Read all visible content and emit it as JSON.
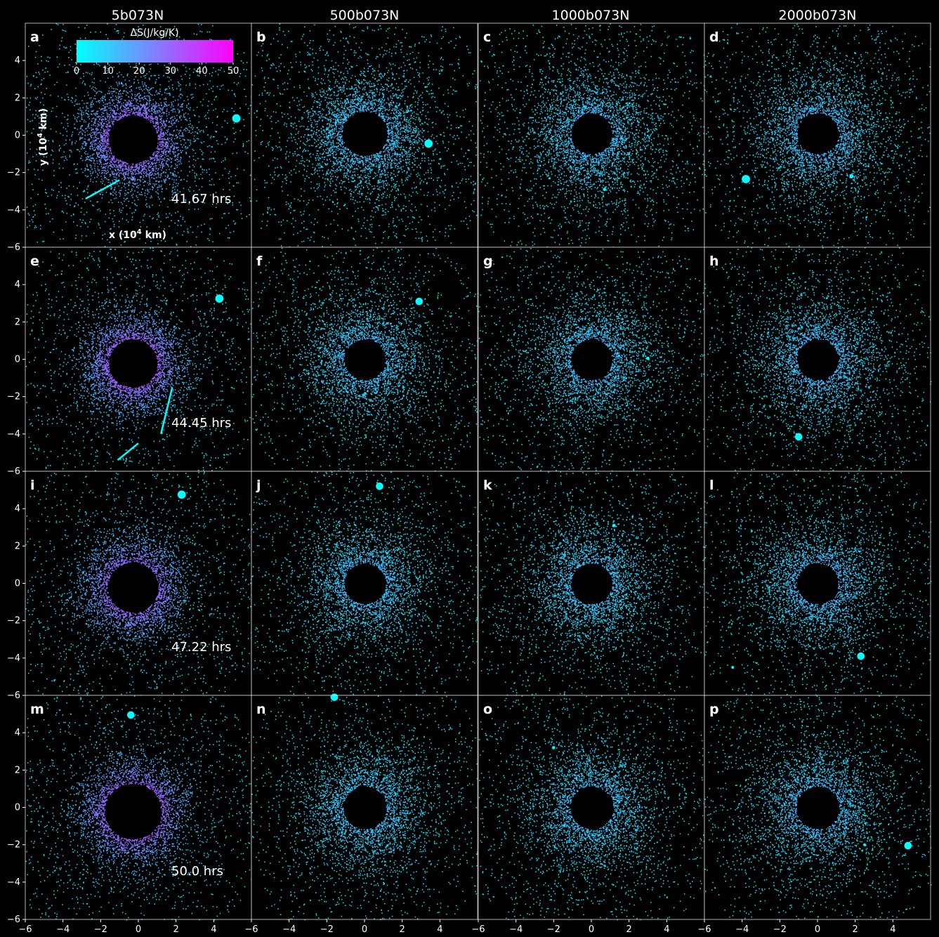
{
  "figure": {
    "column_titles": [
      "5b073N",
      "500b073N",
      "1000b073N",
      "2000b073N"
    ],
    "row_times": [
      "41.67 hrs",
      "44.45 hrs",
      "47.22 hrs",
      "50.0 hrs"
    ],
    "panel_labels": [
      "a",
      "b",
      "c",
      "d",
      "e",
      "f",
      "g",
      "h",
      "i",
      "j",
      "k",
      "l",
      "m",
      "n",
      "o",
      "p"
    ],
    "x_axis_label_main": "x (10",
    "x_axis_label_exp": "4",
    "x_axis_label_tail": " km)",
    "y_axis_label_main": "y (10",
    "y_axis_label_exp": "4",
    "y_axis_label_tail": " km)"
  },
  "colorbar": {
    "title": "ΔS(J/kg/K)",
    "min": 0,
    "max": 50,
    "ticks": [
      0,
      10,
      20,
      30,
      40,
      50
    ],
    "color_low": "#00ffff",
    "color_high": "#ff00ff"
  },
  "chart_data": {
    "type": "scatter",
    "description_units": "x, y in 10^4 km; color = ΔS in J/kg/K",
    "xlim": [
      -6,
      6
    ],
    "ylim": [
      -6,
      6
    ],
    "x_ticks": [
      -6,
      -4,
      -2,
      0,
      2,
      4
    ],
    "y_ticks": [
      -6,
      -4,
      -2,
      0,
      2,
      4
    ],
    "panels": [
      {
        "label": "a",
        "column": "5b073N",
        "time": "41.67 hrs",
        "hole_center": [
          -0.3,
          -0.2
        ],
        "hole_radius": 1.3,
        "ring_inner": 1.2,
        "ring_outer": 3.5,
        "entropy_mean": 30,
        "moonlets": [
          [
            5.2,
            0.9,
            0.2
          ]
        ],
        "streams": [
          [
            -2.8,
            -3.4,
            -1.0,
            -2.4
          ]
        ]
      },
      {
        "label": "b",
        "column": "500b073N",
        "time": "41.67 hrs",
        "hole_center": [
          0.0,
          0.1
        ],
        "hole_radius": 1.2,
        "ring_inner": 1.1,
        "ring_outer": 4.3,
        "entropy_mean": 10,
        "moonlets": [
          [
            3.4,
            -0.45,
            0.2
          ]
        ],
        "streams": []
      },
      {
        "label": "c",
        "column": "1000b073N",
        "time": "41.67 hrs",
        "hole_center": [
          0.0,
          0.1
        ],
        "hole_radius": 1.1,
        "ring_inner": 1.0,
        "ring_outer": 4.6,
        "entropy_mean": 10,
        "moonlets": [
          [
            0.7,
            -2.9,
            0.08
          ]
        ],
        "streams": []
      },
      {
        "label": "d",
        "column": "2000b073N",
        "time": "41.67 hrs",
        "hole_center": [
          0.0,
          0.1
        ],
        "hole_radius": 1.1,
        "ring_inner": 1.0,
        "ring_outer": 4.8,
        "entropy_mean": 11,
        "moonlets": [
          [
            -3.8,
            -2.35,
            0.2
          ],
          [
            1.8,
            -2.2,
            0.1
          ]
        ],
        "streams": []
      },
      {
        "label": "e",
        "column": "5b073N",
        "time": "44.45 hrs",
        "hole_center": [
          -0.3,
          -0.2
        ],
        "hole_radius": 1.3,
        "ring_inner": 1.2,
        "ring_outer": 3.5,
        "entropy_mean": 30,
        "moonlets": [
          [
            4.3,
            3.25,
            0.2
          ]
        ],
        "streams": [
          [
            1.8,
            -1.5,
            1.2,
            -4.0
          ],
          [
            0.0,
            -4.5,
            -1.1,
            -5.4
          ]
        ]
      },
      {
        "label": "f",
        "column": "500b073N",
        "time": "44.45 hrs",
        "hole_center": [
          0.0,
          0.0
        ],
        "hole_radius": 1.1,
        "ring_inner": 1.0,
        "ring_outer": 4.4,
        "entropy_mean": 10,
        "moonlets": [
          [
            2.9,
            3.1,
            0.18
          ]
        ],
        "streams": []
      },
      {
        "label": "g",
        "column": "1000b073N",
        "time": "44.45 hrs",
        "hole_center": [
          0.0,
          0.0
        ],
        "hole_radius": 1.1,
        "ring_inner": 1.0,
        "ring_outer": 4.7,
        "entropy_mean": 10,
        "moonlets": [
          [
            3.0,
            0.05,
            0.08
          ]
        ],
        "streams": []
      },
      {
        "label": "h",
        "column": "2000b073N",
        "time": "44.45 hrs",
        "hole_center": [
          0.0,
          0.0
        ],
        "hole_radius": 1.1,
        "ring_inner": 1.0,
        "ring_outer": 4.8,
        "entropy_mean": 11,
        "moonlets": [
          [
            -1.0,
            -4.15,
            0.18
          ]
        ],
        "streams": []
      },
      {
        "label": "i",
        "column": "5b073N",
        "time": "47.22 hrs",
        "hole_center": [
          -0.3,
          -0.2
        ],
        "hole_radius": 1.35,
        "ring_inner": 1.2,
        "ring_outer": 3.6,
        "entropy_mean": 30,
        "moonlets": [
          [
            2.3,
            4.75,
            0.2
          ]
        ],
        "streams": []
      },
      {
        "label": "j",
        "column": "500b073N",
        "time": "47.22 hrs",
        "hole_center": [
          0.0,
          0.0
        ],
        "hole_radius": 1.1,
        "ring_inner": 1.0,
        "ring_outer": 4.4,
        "entropy_mean": 10,
        "moonlets": [
          [
            0.8,
            5.2,
            0.18
          ]
        ],
        "streams": []
      },
      {
        "label": "k",
        "column": "1000b073N",
        "time": "47.22 hrs",
        "hole_center": [
          0.0,
          0.0
        ],
        "hole_radius": 1.1,
        "ring_inner": 1.0,
        "ring_outer": 4.7,
        "entropy_mean": 10,
        "moonlets": [
          [
            1.2,
            3.1,
            0.08
          ]
        ],
        "streams": []
      },
      {
        "label": "l",
        "column": "2000b073N",
        "time": "47.22 hrs",
        "hole_center": [
          0.0,
          0.0
        ],
        "hole_radius": 1.1,
        "ring_inner": 1.0,
        "ring_outer": 4.8,
        "entropy_mean": 11,
        "moonlets": [
          [
            2.3,
            -3.9,
            0.18
          ],
          [
            -4.5,
            -4.5,
            0.07
          ]
        ],
        "streams": []
      },
      {
        "label": "m",
        "column": "5b073N",
        "time": "50.0 hrs",
        "hole_center": [
          -0.3,
          -0.2
        ],
        "hole_radius": 1.5,
        "ring_inner": 1.3,
        "ring_outer": 3.7,
        "entropy_mean": 32,
        "moonlets": [
          [
            -0.4,
            4.95,
            0.18
          ]
        ],
        "streams": []
      },
      {
        "label": "n",
        "column": "500b073N",
        "time": "50.0 hrs",
        "hole_center": [
          0.0,
          0.0
        ],
        "hole_radius": 1.15,
        "ring_inner": 1.0,
        "ring_outer": 4.5,
        "entropy_mean": 10,
        "moonlets": [
          [
            -1.6,
            5.9,
            0.18
          ]
        ],
        "streams": []
      },
      {
        "label": "o",
        "column": "1000b073N",
        "time": "50.0 hrs",
        "hole_center": [
          0.0,
          0.0
        ],
        "hole_radius": 1.15,
        "ring_inner": 1.0,
        "ring_outer": 4.7,
        "entropy_mean": 10,
        "moonlets": [
          [
            -2.0,
            3.2,
            0.08
          ]
        ],
        "streams": []
      },
      {
        "label": "p",
        "column": "2000b073N",
        "time": "50.0 hrs",
        "hole_center": [
          0.0,
          0.0
        ],
        "hole_radius": 1.15,
        "ring_inner": 1.0,
        "ring_outer": 4.8,
        "entropy_mean": 11,
        "moonlets": [
          [
            4.8,
            -2.05,
            0.18
          ],
          [
            2.5,
            -2.0,
            0.07
          ]
        ],
        "streams": []
      }
    ]
  }
}
